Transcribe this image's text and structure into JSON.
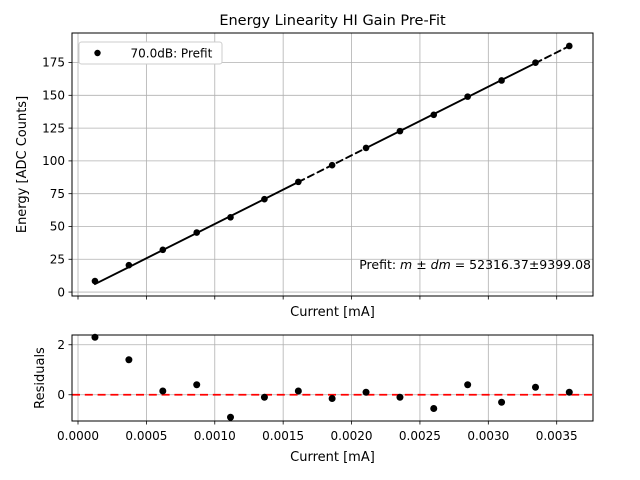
{
  "figure": {
    "background": "#ffffff",
    "title": "Energy Linearity HI Gain Pre-Fit"
  },
  "colors": {
    "marker": "#000000",
    "fit_line": "#000000",
    "zero_line": "#ff0000",
    "grid": "#b0b0b0",
    "legend_border": "#cccccc"
  },
  "chart_data": [
    {
      "type": "scatter",
      "title": "Energy Linearity HI Gain Pre-Fit",
      "xlabel": "Current [mA]",
      "ylabel": "Energy [ADC Counts]",
      "xlim": [
        -4.39e-05,
        0.0037654
      ],
      "ylim": [
        -3.0,
        197.5
      ],
      "grid": true,
      "xticks": [
        0.0,
        0.0005,
        0.001,
        0.0015,
        0.002,
        0.0025,
        0.003,
        0.0035
      ],
      "xticklabels": [
        "",
        "",
        "",
        "",
        "",
        "",
        "",
        ""
      ],
      "yticks": [
        0,
        25,
        50,
        75,
        100,
        125,
        150,
        175
      ],
      "yticklabels": [
        "0",
        "25",
        "50",
        "75",
        "100",
        "125",
        "150",
        "175"
      ],
      "legend": {
        "position": "upper-left",
        "entries": [
          {
            "label": "70.0dB: Prefit",
            "marker": "point",
            "color": "#000000"
          }
        ]
      },
      "series": [
        {
          "name": "70.0dB: Prefit",
          "marker": "point",
          "color": "#000000",
          "x": [
            0.000124,
            0.000372,
            0.00062,
            0.000868,
            0.001115,
            0.001363,
            0.001611,
            0.001858,
            0.002106,
            0.002354,
            0.002601,
            0.002849,
            0.003097,
            0.003345,
            0.003592
          ],
          "y": [
            8.4,
            20.5,
            32.2,
            45.4,
            57.0,
            70.8,
            84.0,
            96.7,
            109.9,
            122.7,
            135.1,
            149.0,
            161.3,
            174.9,
            187.6
          ]
        }
      ],
      "fit_line": {
        "slope": 52316.37,
        "intercept": -0.4,
        "color": "#000000",
        "segments": [
          {
            "x0": 0.000124,
            "x1": 0.001611,
            "style": "solid"
          },
          {
            "x0": 0.001611,
            "x1": 0.002106,
            "style": "dashed"
          },
          {
            "x0": 0.002106,
            "x1": 0.003345,
            "style": "solid"
          },
          {
            "x0": 0.003345,
            "x1": 0.003592,
            "style": "dashed"
          }
        ]
      },
      "annotation": {
        "slope": 52316.37,
        "slope_err": 9399.08,
        "parts": {
          "prefix": "Prefit: ",
          "math": "m ± dm",
          "suffix": " = 52316.37±9399.08"
        }
      }
    },
    {
      "type": "scatter",
      "title": "",
      "xlabel": "Current [mA]",
      "ylabel": "Residuals",
      "xlim": [
        -4.39e-05,
        0.0037654
      ],
      "ylim": [
        -1.05,
        2.39
      ],
      "grid": true,
      "xticks": [
        0.0,
        0.0005,
        0.001,
        0.0015,
        0.002,
        0.0025,
        0.003,
        0.0035
      ],
      "xticklabels": [
        "0.0000",
        "0.0005",
        "0.0010",
        "0.0015",
        "0.0020",
        "0.0025",
        "0.0030",
        "0.0035"
      ],
      "yticks": [
        0,
        2
      ],
      "yticklabels": [
        "0",
        "2"
      ],
      "zero_line": {
        "y": 0,
        "color": "#ff0000",
        "style": "dashed"
      },
      "series": [
        {
          "name": "residuals",
          "marker": "point",
          "color": "#000000",
          "x": [
            0.000124,
            0.000372,
            0.00062,
            0.000868,
            0.001115,
            0.001363,
            0.001611,
            0.001858,
            0.002106,
            0.002354,
            0.002601,
            0.002849,
            0.003097,
            0.003345,
            0.003592
          ],
          "y": [
            2.3,
            1.4,
            0.15,
            0.4,
            -0.9,
            -0.1,
            0.15,
            -0.15,
            0.1,
            -0.1,
            -0.55,
            0.4,
            -0.3,
            0.3,
            0.1
          ]
        }
      ]
    }
  ]
}
